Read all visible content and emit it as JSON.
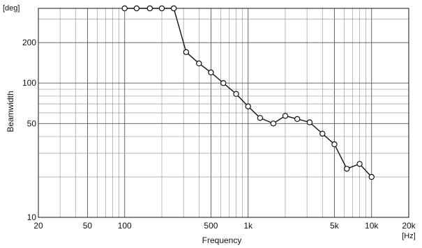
{
  "chart_data": {
    "type": "line",
    "xlabel": "Frequency",
    "ylabel": "Beamwidth",
    "x_unit": "[Hz]",
    "y_unit": "[deg]",
    "x_scale": "log",
    "y_scale": "log",
    "xlim": [
      20,
      20000
    ],
    "ylim": [
      10,
      360
    ],
    "grid": true,
    "x_ticks": [
      {
        "value": 20,
        "label": "20"
      },
      {
        "value": 50,
        "label": "50"
      },
      {
        "value": 100,
        "label": "100"
      },
      {
        "value": 500,
        "label": "500"
      },
      {
        "value": 1000,
        "label": "1k"
      },
      {
        "value": 5000,
        "label": "5k"
      },
      {
        "value": 10000,
        "label": "10k"
      },
      {
        "value": 20000,
        "label": "20k"
      }
    ],
    "y_ticks": [
      {
        "value": 10,
        "label": "10"
      },
      {
        "value": 50,
        "label": "50"
      },
      {
        "value": 100,
        "label": "100"
      },
      {
        "value": 200,
        "label": "200"
      }
    ],
    "series": [
      {
        "x": [
          100,
          125,
          160,
          200,
          250,
          315,
          400,
          500,
          630,
          800,
          1000,
          1250,
          1600,
          2000,
          2500,
          3150,
          4000,
          5000,
          6300,
          8000,
          10000
        ],
        "y": [
          360,
          360,
          360,
          360,
          360,
          170,
          140,
          120,
          100,
          83,
          67,
          55,
          50,
          57,
          54,
          51,
          42,
          35,
          23,
          25,
          20
        ],
        "color": "#111111",
        "marker": "open-circle"
      }
    ]
  }
}
